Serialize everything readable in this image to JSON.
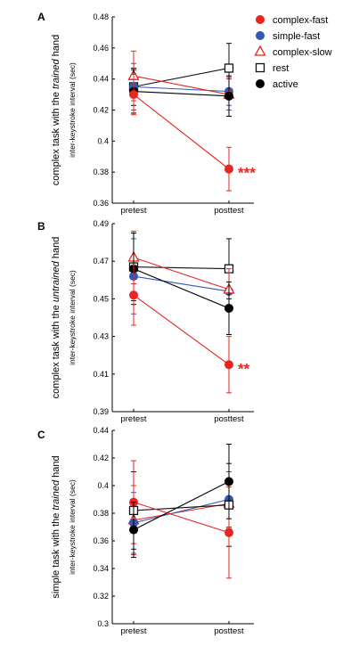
{
  "colors": {
    "complex_fast": "#e8251f",
    "simple_fast": "#3456b4",
    "complex_slow": "#e8251f",
    "rest": "#111111",
    "active": "#000000",
    "axis": "#000000"
  },
  "legend": [
    {
      "key": "complex_fast",
      "label": "complex-fast",
      "marker": "filled-circle"
    },
    {
      "key": "simple_fast",
      "label": "simple-fast",
      "marker": "filled-circle"
    },
    {
      "key": "complex_slow",
      "label": "complex-slow",
      "marker": "open-triangle"
    },
    {
      "key": "rest",
      "label": "rest",
      "marker": "open-square"
    },
    {
      "key": "active",
      "label": "active",
      "marker": "filled-circle"
    }
  ],
  "chart_data": [
    {
      "type": "line",
      "panel_label": "A",
      "ylabel_outer_parts": [
        "complex task with the ",
        "trained",
        " hand"
      ],
      "ylabel_inner": "inter-keystroke interval (sec)",
      "categories": [
        "pretest",
        "posttest"
      ],
      "ylim": [
        0.36,
        0.48
      ],
      "yticks": [
        0.36,
        0.38,
        0.4,
        0.42,
        0.44,
        0.46,
        0.48
      ],
      "ytick_labels": [
        "0.36",
        "0.38",
        "0.4",
        "0.42",
        "0.44",
        "0.46",
        "0.48"
      ],
      "significance": {
        "label": "***",
        "series": "complex_fast",
        "category": "posttest"
      },
      "series": [
        {
          "key": "rest",
          "name": "rest",
          "values": [
            0.435,
            0.447
          ],
          "errors": [
            0.012,
            0.016
          ]
        },
        {
          "key": "simple_fast",
          "name": "simple-fast",
          "values": [
            0.435,
            0.432
          ],
          "errors": [
            0.015,
            0.009
          ]
        },
        {
          "key": "complex_slow",
          "name": "complex-slow",
          "values": [
            0.442,
            0.43
          ],
          "errors": [
            0.016,
            0.01
          ]
        },
        {
          "key": "active",
          "name": "active",
          "values": [
            0.432,
            0.429
          ],
          "errors": [
            0.014,
            0.013
          ]
        },
        {
          "key": "complex_fast",
          "name": "complex-fast",
          "values": [
            0.43,
            0.382
          ],
          "errors": [
            0.013,
            0.014
          ]
        }
      ]
    },
    {
      "type": "line",
      "panel_label": "B",
      "ylabel_outer_parts": [
        "complex task with the ",
        "untrained",
        " hand"
      ],
      "ylabel_inner": "inter-keystroke interval (sec)",
      "categories": [
        "pretest",
        "posttest"
      ],
      "ylim": [
        0.39,
        0.49
      ],
      "yticks": [
        0.39,
        0.41,
        0.43,
        0.45,
        0.47,
        0.49
      ],
      "ytick_labels": [
        "0.39",
        "0.41",
        "0.43",
        "0.45",
        "0.47",
        "0.49"
      ],
      "significance": {
        "label": "**",
        "series": "complex_fast",
        "category": "posttest"
      },
      "series": [
        {
          "key": "rest",
          "name": "rest",
          "values": [
            0.467,
            0.466
          ],
          "errors": [
            0.018,
            0.016
          ]
        },
        {
          "key": "simple_fast",
          "name": "simple-fast",
          "values": [
            0.462,
            0.454
          ],
          "errors": [
            0.02,
            0.01
          ]
        },
        {
          "key": "complex_slow",
          "name": "complex-slow",
          "values": [
            0.472,
            0.455
          ],
          "errors": [
            0.014,
            0.011
          ]
        },
        {
          "key": "active",
          "name": "active",
          "values": [
            0.466,
            0.445
          ],
          "errors": [
            0.019,
            0.014
          ]
        },
        {
          "key": "complex_fast",
          "name": "complex-fast",
          "values": [
            0.452,
            0.415
          ],
          "errors": [
            0.016,
            0.015
          ]
        }
      ]
    },
    {
      "type": "line",
      "panel_label": "C",
      "ylabel_outer_parts": [
        "simple task with the ",
        "trained",
        " hand"
      ],
      "ylabel_inner": "inter-keystroke interval (sec)",
      "categories": [
        "pretest",
        "posttest"
      ],
      "ylim": [
        0.3,
        0.44
      ],
      "yticks": [
        0.3,
        0.32,
        0.34,
        0.36,
        0.38,
        0.4,
        0.42,
        0.44
      ],
      "ytick_labels": [
        "0.3",
        "0.32",
        "0.34",
        "0.36",
        "0.38",
        "0.4",
        "0.42",
        "0.44"
      ],
      "significance": null,
      "series": [
        {
          "key": "complex_slow",
          "name": "complex-slow",
          "values": [
            0.375,
            0.387
          ],
          "errors": [
            0.025,
            0.018
          ]
        },
        {
          "key": "simple_fast",
          "name": "simple-fast",
          "values": [
            0.373,
            0.39
          ],
          "errors": [
            0.022,
            0.02
          ]
        },
        {
          "key": "rest",
          "name": "rest",
          "values": [
            0.382,
            0.386
          ],
          "errors": [
            0.028,
            0.03
          ]
        },
        {
          "key": "complex_fast",
          "name": "complex-fast",
          "values": [
            0.388,
            0.366
          ],
          "errors": [
            0.03,
            0.033
          ]
        },
        {
          "key": "active",
          "name": "active",
          "values": [
            0.368,
            0.403
          ],
          "errors": [
            0.02,
            0.027
          ]
        }
      ]
    }
  ]
}
